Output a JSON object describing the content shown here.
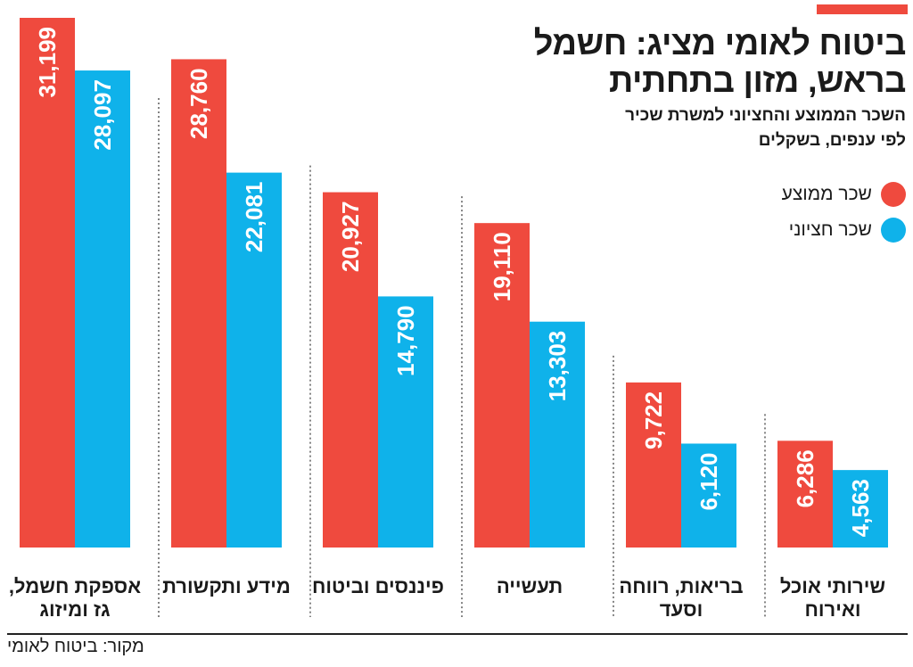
{
  "title": "ביטוח לאומי מציג: חשמל בראש, מזון בתחתית",
  "subtitle": "השכר הממוצע והחציוני למשרת שכיר\nלפי ענפים, בשקלים",
  "source": "מקור: ביטוח לאומי",
  "colors": {
    "average": "#ef4a3e",
    "median": "#0fb2ea",
    "accent": "#ef4a3e",
    "text": "#1a1a1a"
  },
  "chart_data": {
    "type": "bar",
    "categories": [
      "אספקת חשמל,\nגז ומיזוג",
      "מידע ותקשורת",
      "פיננסים וביטוח",
      "תעשייה",
      "בריאות, רווחה\nוסעד",
      "שירותי אוכל\nואירוח"
    ],
    "series": [
      {
        "name": "שכר ממוצע",
        "values": [
          31199,
          28760,
          20927,
          19110,
          9722,
          6286
        ],
        "labels": [
          "31,199",
          "28,760",
          "20,927",
          "19,110",
          "9,722",
          "6,286"
        ]
      },
      {
        "name": "שכר חציוני",
        "values": [
          28097,
          22081,
          14790,
          13303,
          6120,
          4563
        ],
        "labels": [
          "28,097",
          "22,081",
          "14,790",
          "13,303",
          "6,120",
          "4,563"
        ]
      }
    ],
    "ylim": [
      0,
      31199
    ],
    "legend": "top-right",
    "grid": false
  }
}
